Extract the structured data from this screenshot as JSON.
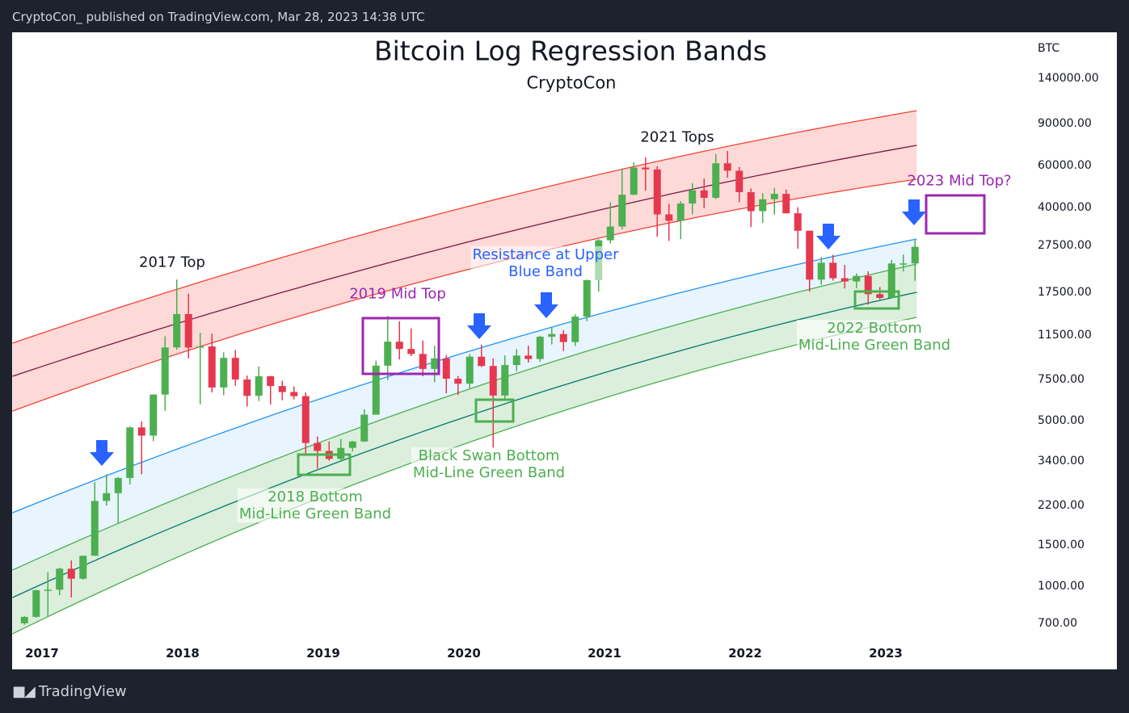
{
  "header": {
    "published": "CryptoCon_ published on TradingView.com, Mar 28, 2023 14:38 UTC"
  },
  "footer": {
    "brand": "TradingView",
    "logo_icon": "tradingview-logo-icon"
  },
  "colors": {
    "up": "#4caf50",
    "down": "#e5384f",
    "red_band": "#f44336",
    "mid_red": "#7b1846",
    "blue": "#2196f3",
    "green": "#4caf50",
    "teal": "#00796b",
    "arrow": "#2962ff",
    "box_purple": "#9c27b0",
    "box_green": "#4caf50"
  },
  "chart_data": {
    "type": "candlestick",
    "title": "Bitcoin Log Regression Bands",
    "subtitle": "CryptoCon",
    "yaxis_label": "BTC",
    "yscale": "log",
    "yticks": [
      "140000.00",
      "90000.00",
      "60000.00",
      "40000.00",
      "27500.00",
      "17500.00",
      "11500.00",
      "7500.00",
      "5000.00",
      "3400.00",
      "2200.00",
      "1500.00",
      "1000.00",
      "700.00"
    ],
    "xticks": [
      "2017",
      "2018",
      "2019",
      "2020",
      "2021",
      "2022",
      "2023"
    ],
    "bands": [
      {
        "name": "upper-red",
        "t": [
          2016.79,
          2020.0,
          2023.22
        ],
        "price": [
          10660,
          39860,
          102200
        ]
      },
      {
        "name": "mid-red",
        "t": [
          2016.79,
          2020.0,
          2023.22
        ],
        "price": [
          7730,
          28220,
          72960
        ]
      },
      {
        "name": "lower-red",
        "t": [
          2016.79,
          2020.0,
          2023.22
        ],
        "price": [
          5513,
          21600,
          52470
        ]
      },
      {
        "name": "blue",
        "t": [
          2016.79,
          2020.0,
          2023.22
        ],
        "price": [
          2050,
          9700,
          29350
        ]
      },
      {
        "name": "upper-green",
        "t": [
          2016.79,
          2020.0,
          2023.22
        ],
        "price": [
          1174,
          6706,
          23010
        ]
      },
      {
        "name": "mid-green",
        "t": [
          2016.79,
          2020.0,
          2023.22
        ],
        "price": [
          899,
          5178,
          17480
        ]
      },
      {
        "name": "lower-green",
        "t": [
          2016.79,
          2020.0,
          2023.22
        ],
        "price": [
          632,
          3995,
          13710
        ]
      }
    ],
    "candles": [
      [
        "2016-11",
        700,
        750,
        690,
        745
      ],
      [
        "2016-12",
        745,
        970,
        740,
        965
      ],
      [
        "2017-01",
        965,
        1150,
        750,
        970
      ],
      [
        "2017-02",
        970,
        1200,
        920,
        1190
      ],
      [
        "2017-03",
        1190,
        1290,
        900,
        1080
      ],
      [
        "2017-04",
        1080,
        1350,
        1070,
        1350
      ],
      [
        "2017-05",
        1350,
        2760,
        1350,
        2300
      ],
      [
        "2017-06",
        2300,
        2980,
        2200,
        2480
      ],
      [
        "2017-07",
        2480,
        2900,
        1840,
        2875
      ],
      [
        "2017-08",
        2875,
        4740,
        2700,
        4700
      ],
      [
        "2017-09",
        4700,
        4980,
        2980,
        4340
      ],
      [
        "2017-10",
        4340,
        6470,
        4110,
        6470
      ],
      [
        "2017-11",
        6470,
        11400,
        5520,
        10230
      ],
      [
        "2017-12",
        10230,
        19800,
        10000,
        14150
      ],
      [
        "2018-01",
        14150,
        17250,
        9200,
        10220
      ],
      [
        "2018-02",
        10220,
        11790,
        5880,
        10330
      ],
      [
        "2018-03",
        10330,
        11700,
        6600,
        6930
      ],
      [
        "2018-04",
        6930,
        9750,
        6430,
        9240
      ],
      [
        "2018-05",
        9240,
        9990,
        7050,
        7490
      ],
      [
        "2018-06",
        7490,
        7780,
        5760,
        6390
      ],
      [
        "2018-07",
        6390,
        8500,
        6070,
        7730
      ],
      [
        "2018-08",
        7730,
        7760,
        5880,
        7030
      ],
      [
        "2018-09",
        7030,
        7400,
        6120,
        6630
      ],
      [
        "2018-10",
        6630,
        7000,
        6180,
        6370
      ],
      [
        "2018-11",
        6370,
        6600,
        3600,
        4040
      ],
      [
        "2018-12",
        4040,
        4300,
        3150,
        3740
      ],
      [
        "2019-01",
        3740,
        4100,
        3400,
        3460
      ],
      [
        "2019-02",
        3460,
        4200,
        3390,
        3850
      ],
      [
        "2019-03",
        3850,
        4120,
        3720,
        4100
      ],
      [
        "2019-04",
        4100,
        5600,
        4080,
        5320
      ],
      [
        "2019-05",
        5320,
        9000,
        5320,
        8570
      ],
      [
        "2019-06",
        8570,
        13900,
        7460,
        10820
      ],
      [
        "2019-07",
        10820,
        13200,
        9100,
        10080
      ],
      [
        "2019-08",
        10080,
        12300,
        9400,
        9600
      ],
      [
        "2019-09",
        9600,
        10950,
        7730,
        8300
      ],
      [
        "2019-10",
        8300,
        10400,
        7300,
        9200
      ],
      [
        "2019-11",
        9200,
        9500,
        6550,
        7550
      ],
      [
        "2019-12",
        7550,
        7750,
        6430,
        7190
      ],
      [
        "2020-01",
        7190,
        9580,
        6870,
        9350
      ],
      [
        "2020-02",
        9350,
        10500,
        8450,
        8540
      ],
      [
        "2020-03",
        8540,
        9190,
        3850,
        6410
      ],
      [
        "2020-04",
        6410,
        9460,
        6150,
        8620
      ],
      [
        "2020-05",
        8620,
        10060,
        8110,
        9450
      ],
      [
        "2020-06",
        9450,
        10400,
        8830,
        9140
      ],
      [
        "2020-07",
        9140,
        11450,
        8900,
        11350
      ],
      [
        "2020-08",
        11350,
        12480,
        10530,
        11650
      ],
      [
        "2020-09",
        11650,
        12090,
        9880,
        10780
      ],
      [
        "2020-10",
        10780,
        14100,
        10370,
        13800
      ],
      [
        "2020-11",
        13800,
        19900,
        13200,
        19700
      ],
      [
        "2020-12",
        19700,
        29300,
        17600,
        28990
      ],
      [
        "2021-01",
        28990,
        41950,
        28130,
        33140
      ],
      [
        "2021-02",
        33140,
        58350,
        32300,
        45140
      ],
      [
        "2021-03",
        45140,
        61780,
        44950,
        58800
      ],
      [
        "2021-04",
        58800,
        64850,
        47000,
        57750
      ],
      [
        "2021-05",
        57750,
        59500,
        30000,
        37300
      ],
      [
        "2021-06",
        37300,
        41300,
        28800,
        35040
      ],
      [
        "2021-07",
        35040,
        42400,
        29300,
        41460
      ],
      [
        "2021-08",
        41460,
        50500,
        37330,
        47130
      ],
      [
        "2021-09",
        47130,
        52900,
        39600,
        43820
      ],
      [
        "2021-10",
        43820,
        67000,
        43300,
        61300
      ],
      [
        "2021-11",
        61300,
        69000,
        53260,
        57000
      ],
      [
        "2021-12",
        57000,
        59100,
        42000,
        46300
      ],
      [
        "2022-01",
        46300,
        48000,
        32950,
        38480
      ],
      [
        "2022-02",
        38480,
        45800,
        34300,
        43190
      ],
      [
        "2022-03",
        43190,
        48200,
        37200,
        45540
      ],
      [
        "2022-04",
        45540,
        47450,
        37600,
        37700
      ],
      [
        "2022-05",
        37700,
        40000,
        26700,
        31800
      ],
      [
        "2022-06",
        31800,
        31900,
        17600,
        19780
      ],
      [
        "2022-07",
        19780,
        24650,
        18780,
        23300
      ],
      [
        "2022-08",
        23300,
        25200,
        19600,
        20050
      ],
      [
        "2022-09",
        20050,
        22800,
        18150,
        19430
      ],
      [
        "2022-10",
        19430,
        21000,
        18200,
        20500
      ],
      [
        "2022-11",
        20500,
        21450,
        15500,
        17170
      ],
      [
        "2022-12",
        17170,
        18400,
        16300,
        16550
      ],
      [
        "2023-01",
        16550,
        23950,
        16500,
        23140
      ],
      [
        "2023-02",
        23140,
        25250,
        21400,
        23150
      ],
      [
        "2023-03",
        23150,
        29200,
        19550,
        27200
      ]
    ],
    "annotations": {
      "top_2017": "2017 Top",
      "tops_2021": "2021 Tops",
      "mid_top_2019": "2019 Mid Top",
      "resistance_1": "Resistance at Upper",
      "resistance_2": "Blue Band",
      "mid_top_2023": "2023 Mid Top?",
      "bottom_2018_1": "2018 Bottom",
      "bottom_2018_2": "Mid-Line Green Band",
      "black_swan_1": "Black Swan Bottom",
      "black_swan_2": "Mid-Line Green Band",
      "bottom_2022_1": "2022 Bottom",
      "bottom_2022_2": "Mid-Line Green Band"
    }
  }
}
